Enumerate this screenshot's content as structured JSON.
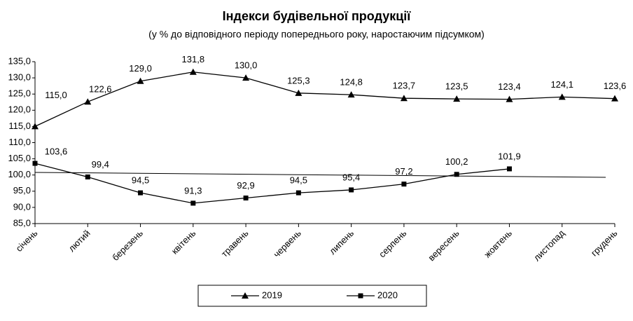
{
  "chart_data": {
    "type": "line",
    "title": "Індекси будівельної продукції",
    "subtitle": "(у % до відповідного періоду попереднього  року, наростаючим підсумком)",
    "categories": [
      "січень",
      "лютий",
      "березень",
      "квітень",
      "травень",
      "червень",
      "липень",
      "серпень",
      "вересень",
      "жовтень",
      "листопад",
      "грудень"
    ],
    "series": [
      {
        "name": "2019",
        "color": "#000000",
        "marker": "triangle",
        "values": [
          115.0,
          122.6,
          129.0,
          131.8,
          130.0,
          125.3,
          124.8,
          123.7,
          123.5,
          123.4,
          124.1,
          123.6
        ],
        "value_labels": [
          "115,0",
          "122,6",
          "129,0",
          "131,8",
          "130,0",
          "125,3",
          "124,8",
          "123,7",
          "123,5",
          "123,4",
          "124,1",
          "123,6"
        ]
      },
      {
        "name": "2020",
        "color": "#000000",
        "marker": "square",
        "values": [
          103.6,
          99.4,
          94.5,
          91.3,
          92.9,
          94.5,
          95.4,
          97.2,
          100.2,
          101.9,
          null,
          null
        ],
        "value_labels": [
          "103,6",
          "99,4",
          "94,5",
          "91,3",
          "92,9",
          "94,5",
          "95,4",
          "97,2",
          "100,2",
          "101,9",
          null,
          null
        ]
      }
    ],
    "ylim": [
      85,
      135
    ],
    "yticks": [
      {
        "value": 85,
        "label": "85,0"
      },
      {
        "value": 90,
        "label": "90,0"
      },
      {
        "value": 95,
        "label": "95,0"
      },
      {
        "value": 100,
        "label": "100,0"
      },
      {
        "value": 105,
        "label": "105,0"
      },
      {
        "value": 110,
        "label": "110,0"
      },
      {
        "value": 115,
        "label": "115,0"
      },
      {
        "value": 120,
        "label": "120,0"
      },
      {
        "value": 125,
        "label": "125,0"
      },
      {
        "value": 130,
        "label": "130,0"
      },
      {
        "value": 135,
        "label": "135,0"
      }
    ],
    "grid": false,
    "legend": "bottom"
  }
}
